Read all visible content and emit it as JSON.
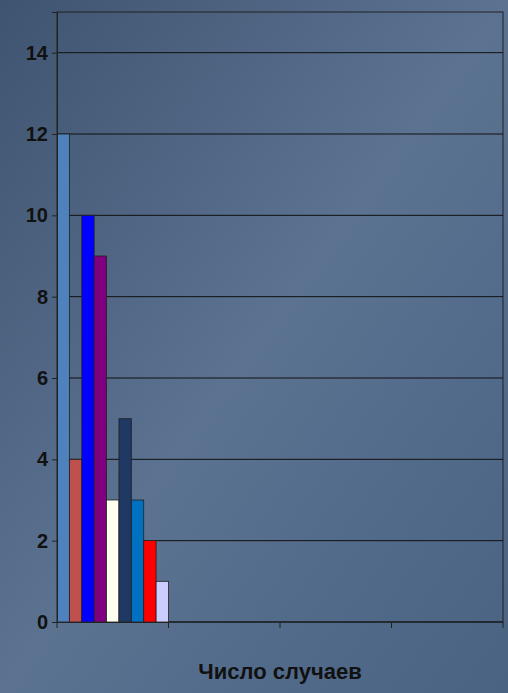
{
  "chart_data": {
    "type": "bar",
    "x_label": "Число случаев",
    "categories": [
      null,
      null,
      null,
      null,
      null,
      null,
      null,
      null,
      null
    ],
    "values": [
      12,
      4,
      10,
      9,
      3,
      5,
      3,
      2,
      1
    ],
    "colors": [
      "#4f81bd",
      "#c0504d",
      "#0000ff",
      "#7f007f",
      "#fffff0",
      "#1f3864",
      "#0070c0",
      "#ff0000",
      "#ccccff"
    ],
    "ylim": [
      0,
      15
    ],
    "yticks": [
      0,
      2,
      4,
      6,
      8,
      10,
      12,
      14
    ],
    "grid": true,
    "tick_labels": "y"
  }
}
